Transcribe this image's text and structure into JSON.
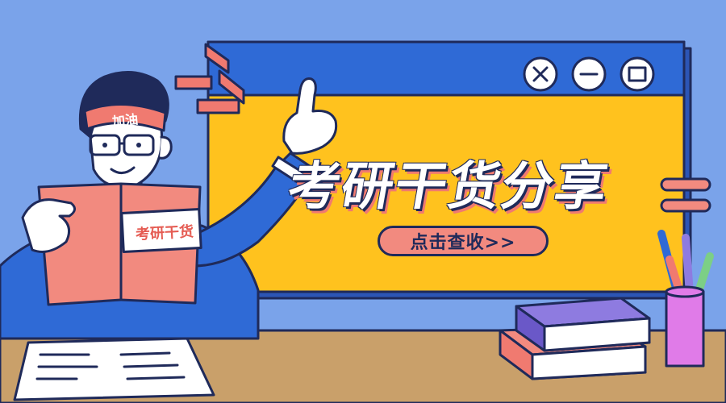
{
  "banner": {
    "title": "考研干货分享",
    "cta_label": "点击查收>>"
  },
  "window_controls": {
    "close_icon": "close-icon",
    "minimize_icon": "minimize-icon",
    "maximize_icon": "maximize-icon"
  },
  "character": {
    "headband_text": "加油",
    "book_label": "考研干货"
  },
  "colors": {
    "background": "#7aa3ea",
    "window_titlebar": "#2f6ad6",
    "window_body": "#ffc21e",
    "accent_coral": "#f28a7f",
    "ink": "#1f2a5a",
    "desk": "#c9a06a"
  }
}
